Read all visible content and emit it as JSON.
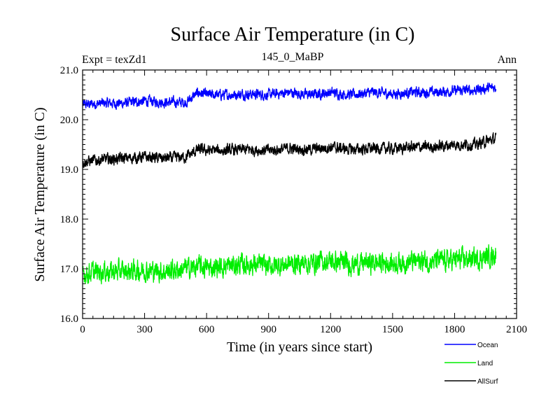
{
  "chart_data": {
    "type": "line",
    "title": "Surface Air Temperature (in C)",
    "subtitle_left": "Expt = texZd1",
    "subtitle_center": "145_0_MaBP",
    "subtitle_right": "Ann",
    "xlabel": "Time (in years since start)",
    "ylabel": "Surface Air Temperature (in C)",
    "xlim": [
      0,
      2100
    ],
    "ylim": [
      16.0,
      21.0
    ],
    "xticks": [
      0,
      300,
      600,
      900,
      1200,
      1500,
      1800,
      2100
    ],
    "yticks": [
      16.0,
      17.0,
      18.0,
      19.0,
      20.0,
      21.0
    ],
    "x_tick_labels": [
      "0",
      "300",
      "600",
      "900",
      "1200",
      "1500",
      "1800",
      "2100"
    ],
    "y_tick_labels": [
      "16.0",
      "17.0",
      "18.0",
      "19.0",
      "20.0",
      "21.0"
    ],
    "legend": [
      {
        "name": "Ocean",
        "color": "#0000ff"
      },
      {
        "name": "Land",
        "color": "#00ee00"
      },
      {
        "name": "AllSurf",
        "color": "#000000"
      }
    ],
    "series": [
      {
        "name": "Ocean",
        "color": "#0000ff",
        "x": [
          0,
          100,
          200,
          300,
          400,
          500,
          560,
          600,
          700,
          800,
          900,
          1000,
          1100,
          1200,
          1300,
          1400,
          1500,
          1600,
          1700,
          1800,
          1900,
          2000
        ],
        "y": [
          20.3,
          20.33,
          20.33,
          20.38,
          20.35,
          20.35,
          20.55,
          20.5,
          20.5,
          20.52,
          20.5,
          20.55,
          20.5,
          20.55,
          20.5,
          20.55,
          20.52,
          20.55,
          20.55,
          20.58,
          20.6,
          20.65
        ],
        "noise": 0.11
      },
      {
        "name": "AllSurf",
        "color": "#000000",
        "x": [
          0,
          100,
          200,
          300,
          400,
          500,
          560,
          600,
          700,
          800,
          900,
          1000,
          1100,
          1200,
          1300,
          1400,
          1500,
          1600,
          1700,
          1800,
          1900,
          2000
        ],
        "y": [
          19.15,
          19.2,
          19.22,
          19.25,
          19.22,
          19.25,
          19.4,
          19.38,
          19.38,
          19.4,
          19.38,
          19.42,
          19.4,
          19.45,
          19.4,
          19.42,
          19.42,
          19.45,
          19.45,
          19.5,
          19.5,
          19.62
        ],
        "noise": 0.12
      },
      {
        "name": "Land",
        "color": "#00ee00",
        "x": [
          0,
          100,
          200,
          300,
          400,
          500,
          560,
          600,
          700,
          800,
          900,
          1000,
          1100,
          1200,
          1300,
          1400,
          1500,
          1600,
          1700,
          1800,
          1900,
          2000
        ],
        "y": [
          16.9,
          16.95,
          16.95,
          16.97,
          16.95,
          17.0,
          17.05,
          17.02,
          17.05,
          17.1,
          17.05,
          17.1,
          17.12,
          17.15,
          17.1,
          17.12,
          17.12,
          17.15,
          17.15,
          17.18,
          17.2,
          17.28
        ],
        "noise": 0.22
      }
    ]
  }
}
